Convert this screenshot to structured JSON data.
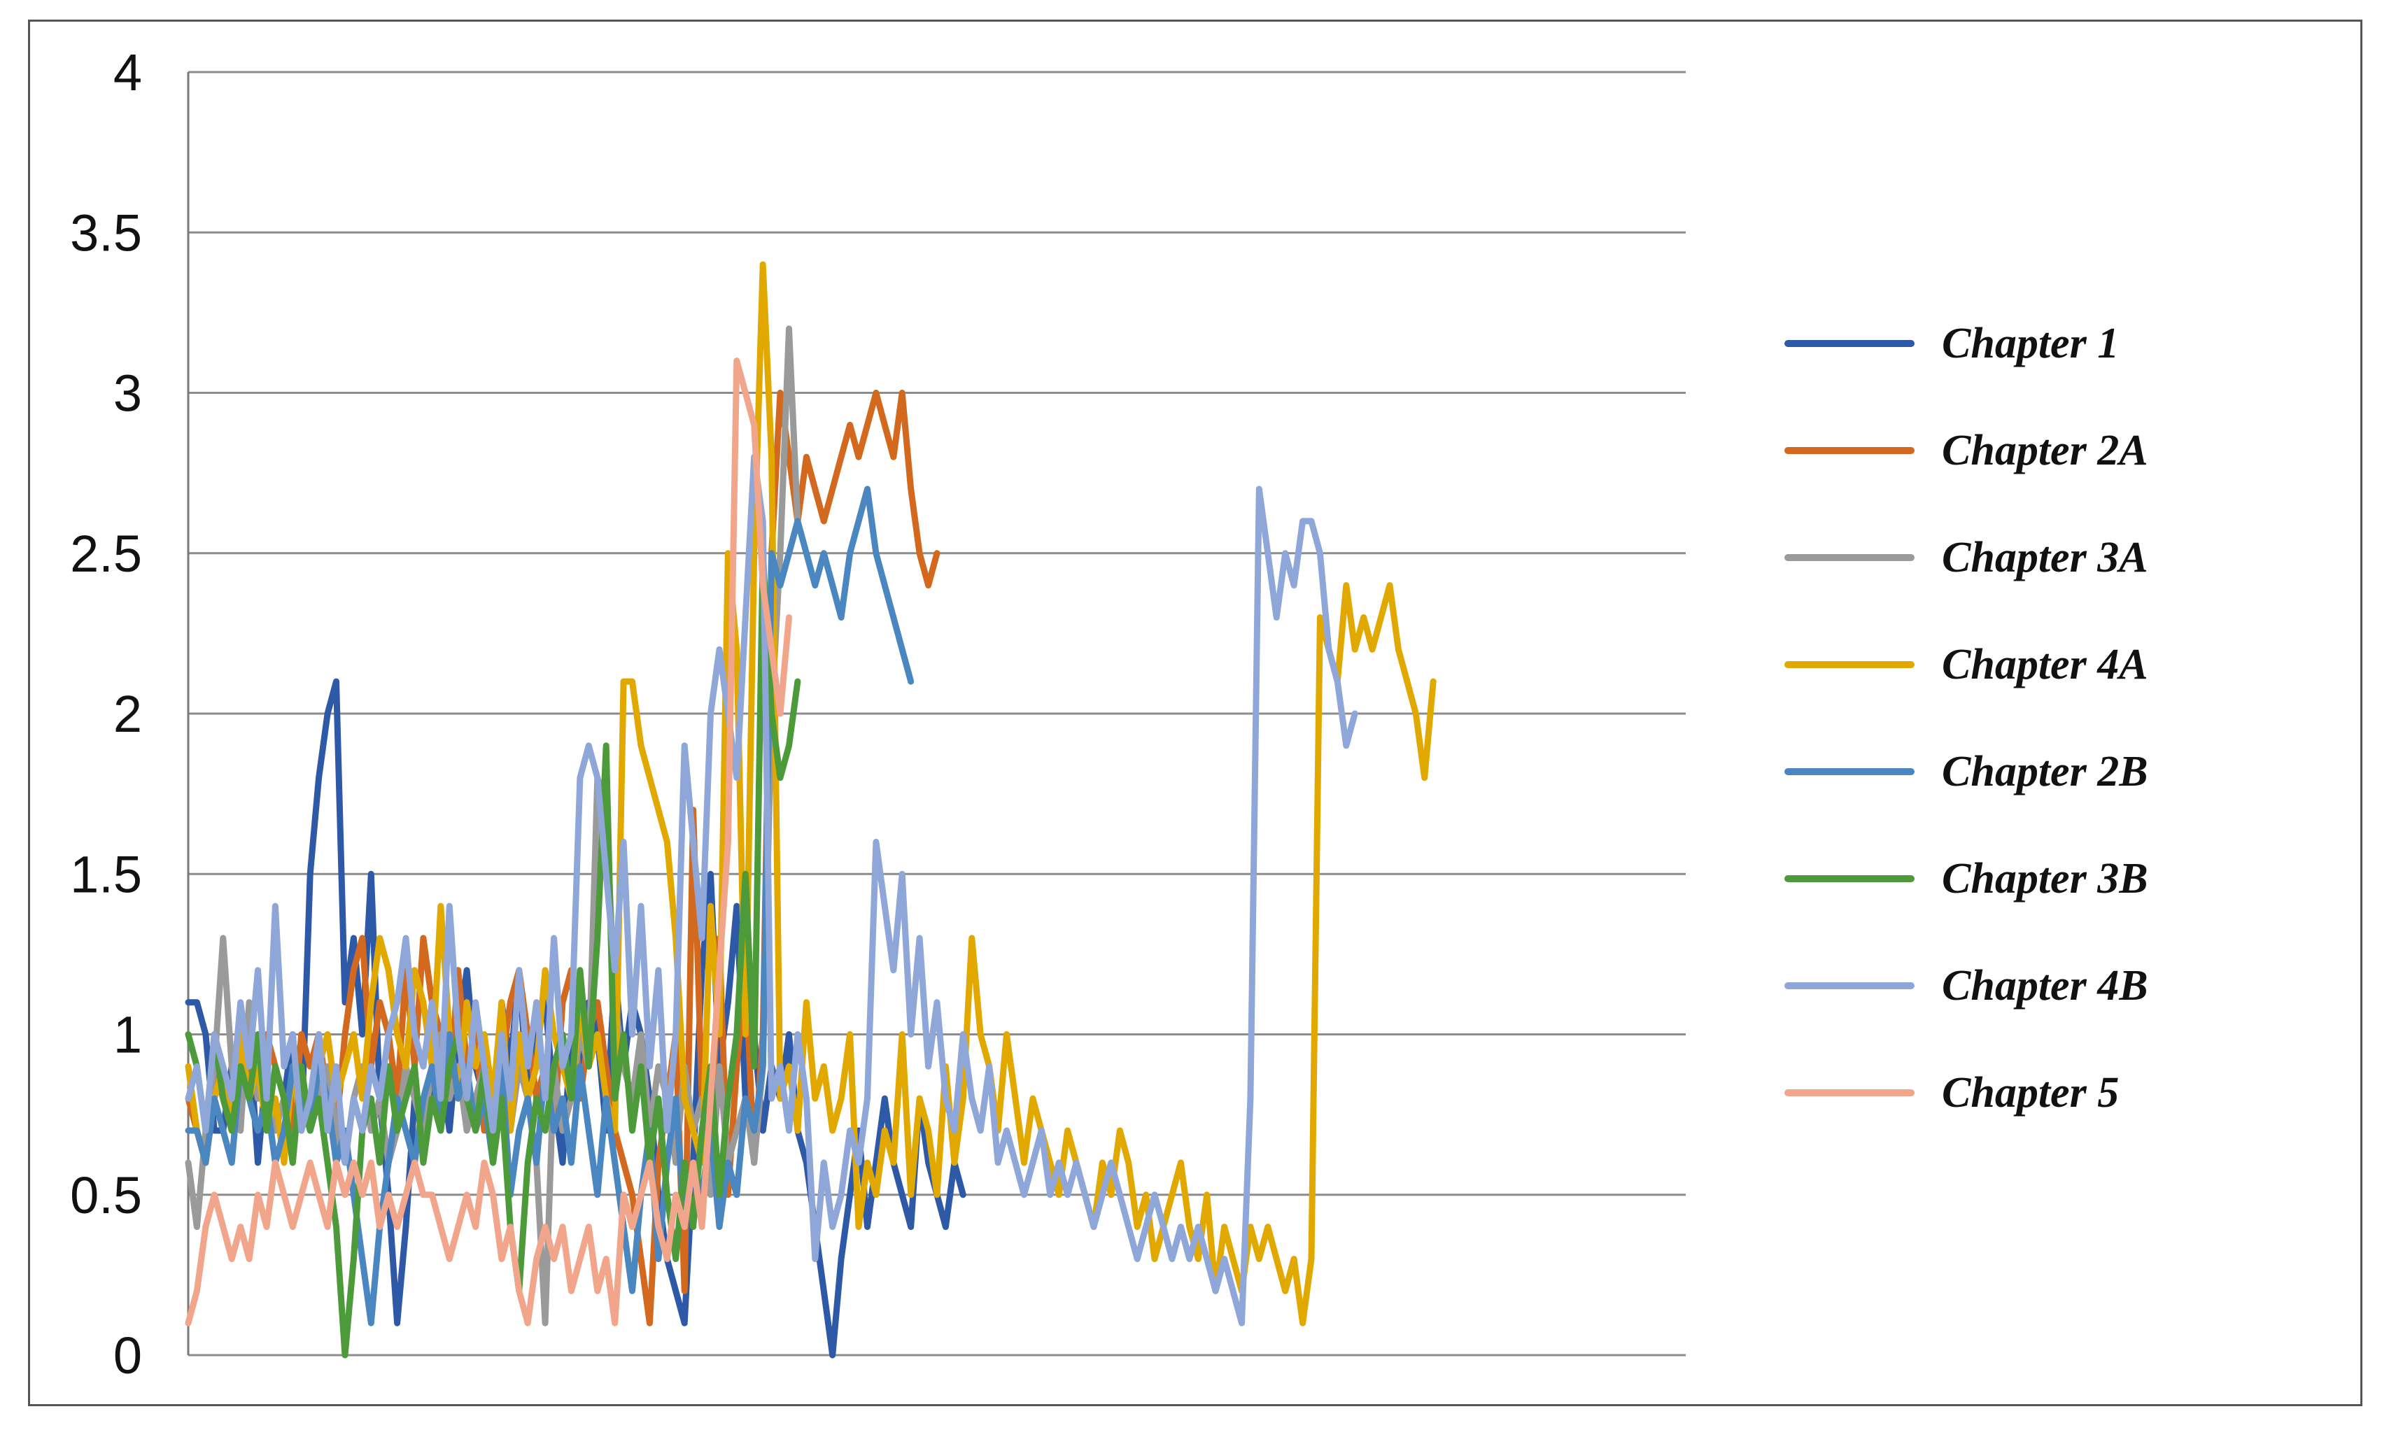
{
  "chart_data": {
    "type": "line",
    "title": "",
    "xlabel": "",
    "ylabel": "",
    "ylim": [
      0,
      4
    ],
    "yticks": [
      "0",
      "0.5",
      "1",
      "1.5",
      "2",
      "2.5",
      "3",
      "3.5",
      "4"
    ],
    "grid": true,
    "legend_position": "right",
    "series": [
      {
        "name": "Chapter 1",
        "color": "#2E59A7",
        "values": [
          1.1,
          1.1,
          1.0,
          0.7,
          0.7,
          0.9,
          0.8,
          1.0,
          0.6,
          0.9,
          0.7,
          0.8,
          1.0,
          0.7,
          1.5,
          1.8,
          2.0,
          2.1,
          1.1,
          1.3,
          1.0,
          1.5,
          0.8,
          0.5,
          0.1,
          0.4,
          0.8,
          0.7,
          0.8,
          0.9,
          0.7,
          1.0,
          1.2,
          0.9,
          0.8,
          0.7,
          1.1,
          0.9,
          1.2,
          0.8,
          1.0,
          1.1,
          0.8,
          0.6,
          1.0,
          0.9,
          1.1,
          1.0,
          0.7,
          1.2,
          0.9,
          1.1,
          1.0,
          0.8,
          0.5,
          0.3,
          0.2,
          0.1,
          0.6,
          1.2,
          1.5,
          0.9,
          1.1,
          1.4,
          0.8,
          1.0,
          0.7,
          0.9,
          0.8,
          1.0,
          0.7,
          0.6,
          0.4,
          0.2,
          0.0,
          0.3,
          0.5,
          0.7,
          0.4,
          0.6,
          0.8,
          0.6,
          0.5,
          0.4,
          0.8,
          0.6,
          0.5,
          0.4,
          0.6,
          0.5
        ]
      },
      {
        "name": "Chapter 2A",
        "color": "#D2691E",
        "values": [
          0.8,
          0.7,
          0.6,
          0.9,
          0.8,
          0.7,
          1.0,
          0.9,
          0.8,
          1.0,
          0.9,
          0.8,
          0.7,
          1.0,
          0.9,
          1.0,
          0.8,
          0.7,
          1.0,
          1.2,
          1.3,
          0.9,
          1.1,
          1.0,
          0.8,
          1.2,
          0.9,
          1.3,
          1.1,
          1.0,
          0.8,
          1.2,
          0.9,
          1.0,
          0.7,
          0.8,
          0.9,
          1.1,
          1.2,
          1.0,
          0.8,
          0.9,
          0.7,
          1.1,
          1.2,
          0.8,
          1.0,
          1.1,
          0.9,
          0.7,
          0.6,
          0.5,
          0.3,
          0.1,
          0.6,
          0.8,
          1.0,
          0.2,
          1.7,
          0.8,
          0.6,
          1.3,
          0.5,
          0.9,
          1.2,
          0.6,
          1.0,
          2.5,
          3.0,
          2.8,
          2.6,
          2.8,
          2.7,
          2.6,
          2.7,
          2.8,
          2.9,
          2.8,
          2.9,
          3.0,
          2.9,
          2.8,
          3.0,
          2.7,
          2.5,
          2.4,
          2.5
        ]
      },
      {
        "name": "Chapter 3A",
        "color": "#9A9A9A",
        "values": [
          0.6,
          0.4,
          0.7,
          0.9,
          1.3,
          0.9,
          0.7,
          1.1,
          0.8,
          0.9,
          0.7,
          0.8,
          0.6,
          0.9,
          0.7,
          0.8,
          0.9,
          0.7,
          0.6,
          0.8,
          0.9,
          0.7,
          0.8,
          0.6,
          0.7,
          0.9,
          0.8,
          0.7,
          0.9,
          1.0,
          0.8,
          0.9,
          0.7,
          0.8,
          0.9,
          0.6,
          0.8,
          0.7,
          0.9,
          0.8,
          0.6,
          0.1,
          0.9,
          0.7,
          0.8,
          1.0,
          0.9,
          1.8,
          1.7,
          1.1,
          0.9,
          0.8,
          1.0,
          0.7,
          0.9,
          0.8,
          0.6,
          0.9,
          0.7,
          0.8,
          0.5,
          0.9,
          0.6,
          0.7,
          0.8,
          0.6,
          0.9,
          2.0,
          2.5,
          3.2,
          2.6
        ]
      },
      {
        "name": "Chapter 4A",
        "color": "#E1A800",
        "values": [
          0.9,
          0.7,
          0.6,
          0.8,
          0.9,
          0.7,
          1.0,
          0.8,
          0.9,
          0.7,
          0.8,
          0.6,
          0.9,
          0.7,
          0.8,
          0.9,
          1.0,
          0.8,
          0.9,
          1.0,
          0.8,
          1.1,
          1.3,
          1.2,
          1.0,
          0.9,
          1.2,
          1.1,
          0.9,
          1.4,
          1.0,
          0.8,
          1.1,
          0.9,
          1.0,
          0.8,
          1.1,
          0.7,
          1.0,
          0.8,
          0.9,
          1.2,
          1.0,
          0.9,
          0.8,
          1.1,
          0.9,
          1.0,
          0.8,
          0.7,
          2.1,
          2.1,
          1.9,
          1.8,
          1.7,
          1.6,
          1.3,
          0.8,
          0.7,
          0.6,
          1.4,
          1.0,
          2.5,
          2.2,
          1.0,
          2.5,
          3.4,
          2.8,
          0.8,
          0.9,
          0.7,
          1.1,
          0.8,
          0.9,
          0.7,
          0.8,
          1.0,
          0.4,
          0.6,
          0.5,
          0.7,
          0.6,
          1.0,
          0.5,
          0.8,
          0.7,
          0.5,
          0.9,
          0.6,
          0.8,
          1.3,
          1.0,
          0.9,
          0.7,
          1.0,
          0.8,
          0.6,
          0.8,
          0.7,
          0.6,
          0.5,
          0.7,
          0.6,
          0.5,
          0.4,
          0.6,
          0.5,
          0.7,
          0.6,
          0.4,
          0.5,
          0.3,
          0.4,
          0.5,
          0.6,
          0.4,
          0.3,
          0.5,
          0.2,
          0.4,
          0.3,
          0.2,
          0.4,
          0.3,
          0.4,
          0.3,
          0.2,
          0.3,
          0.1,
          0.3,
          2.3,
          2.2,
          2.1,
          2.4,
          2.2,
          2.3,
          2.2,
          2.3,
          2.4,
          2.2,
          2.1,
          2.0,
          1.8,
          2.1
        ]
      },
      {
        "name": "Chapter 2B",
        "color": "#4A86C0",
        "values": [
          0.7,
          0.7,
          0.6,
          0.8,
          0.7,
          0.6,
          0.9,
          0.8,
          0.7,
          0.8,
          0.6,
          0.7,
          0.9,
          0.8,
          0.7,
          0.9,
          0.8,
          0.6,
          0.7,
          0.5,
          0.3,
          0.1,
          0.4,
          0.6,
          0.8,
          0.7,
          0.6,
          0.8,
          0.9,
          0.7,
          1.0,
          0.8,
          0.9,
          0.7,
          0.8,
          0.6,
          0.9,
          0.5,
          0.7,
          0.8,
          0.6,
          0.9,
          0.7,
          0.8,
          0.6,
          0.9,
          0.7,
          0.5,
          0.8,
          0.6,
          0.4,
          0.2,
          0.5,
          0.7,
          0.3,
          0.6,
          0.8,
          0.4,
          0.6,
          0.5,
          0.7,
          0.4,
          0.6,
          0.5,
          0.8,
          0.7,
          0.9,
          2.5,
          2.4,
          2.5,
          2.6,
          2.5,
          2.4,
          2.5,
          2.4,
          2.3,
          2.5,
          2.6,
          2.7,
          2.5,
          2.4,
          2.3,
          2.2,
          2.1
        ]
      },
      {
        "name": "Chapter 3B",
        "color": "#4C9A3A",
        "values": [
          1.0,
          0.9,
          0.7,
          1.0,
          0.8,
          0.7,
          0.9,
          0.8,
          1.0,
          0.7,
          0.9,
          0.8,
          0.6,
          0.9,
          0.7,
          0.8,
          0.6,
          0.4,
          0.0,
          0.3,
          0.7,
          0.8,
          0.6,
          0.9,
          0.7,
          0.8,
          0.9,
          0.6,
          0.8,
          0.7,
          0.9,
          1.0,
          0.8,
          0.7,
          0.9,
          0.6,
          0.8,
          0.4,
          0.2,
          0.6,
          0.8,
          0.7,
          0.9,
          1.0,
          0.8,
          1.2,
          0.9,
          1.3,
          1.9,
          0.8,
          1.0,
          0.7,
          0.9,
          0.6,
          0.8,
          0.5,
          0.3,
          0.6,
          0.4,
          0.7,
          0.9,
          0.5,
          0.8,
          1.0,
          1.5,
          0.9,
          2.5,
          2.0,
          1.8,
          1.9,
          2.1
        ]
      },
      {
        "name": "Chapter 4B",
        "color": "#8FA6D8",
        "values": [
          0.8,
          0.9,
          0.7,
          1.0,
          0.9,
          0.8,
          1.1,
          0.9,
          1.2,
          0.8,
          1.4,
          0.9,
          1.0,
          0.7,
          0.8,
          1.0,
          0.7,
          0.9,
          0.6,
          0.8,
          0.7,
          0.9,
          0.8,
          1.0,
          1.1,
          1.3,
          1.0,
          0.9,
          1.1,
          0.8,
          1.4,
          1.0,
          0.8,
          1.1,
          0.9,
          0.7,
          1.0,
          0.8,
          1.2,
          0.9,
          1.1,
          0.8,
          1.3,
          0.9,
          1.0,
          1.8,
          1.9,
          1.8,
          1.5,
          1.2,
          1.6,
          1.0,
          1.4,
          0.9,
          1.2,
          0.7,
          1.0,
          1.9,
          1.6,
          1.3,
          2.0,
          2.2,
          2.0,
          1.8,
          2.3,
          2.8,
          2.6,
          0.8,
          0.9,
          0.7,
          1.0,
          0.8,
          0.3,
          0.6,
          0.4,
          0.5,
          0.7,
          0.6,
          0.8,
          1.6,
          1.4,
          1.2,
          1.5,
          1.0,
          1.3,
          0.9,
          1.1,
          0.8,
          0.7,
          1.0,
          0.8,
          0.7,
          0.9,
          0.6,
          0.7,
          0.6,
          0.5,
          0.6,
          0.7,
          0.5,
          0.6,
          0.5,
          0.6,
          0.5,
          0.4,
          0.5,
          0.6,
          0.5,
          0.4,
          0.3,
          0.4,
          0.5,
          0.4,
          0.3,
          0.4,
          0.3,
          0.4,
          0.3,
          0.2,
          0.3,
          0.2,
          0.1,
          0.8,
          2.7,
          2.5,
          2.3,
          2.5,
          2.4,
          2.6,
          2.6,
          2.5,
          2.2,
          2.1,
          1.9,
          2.0
        ]
      },
      {
        "name": "Chapter 5",
        "color": "#F1A58A",
        "values": [
          0.1,
          0.2,
          0.4,
          0.5,
          0.4,
          0.3,
          0.4,
          0.3,
          0.5,
          0.4,
          0.6,
          0.5,
          0.4,
          0.5,
          0.6,
          0.5,
          0.4,
          0.6,
          0.5,
          0.6,
          0.5,
          0.6,
          0.4,
          0.5,
          0.4,
          0.5,
          0.6,
          0.5,
          0.5,
          0.4,
          0.3,
          0.4,
          0.5,
          0.4,
          0.6,
          0.5,
          0.3,
          0.4,
          0.2,
          0.1,
          0.3,
          0.4,
          0.3,
          0.4,
          0.2,
          0.3,
          0.4,
          0.2,
          0.3,
          0.1,
          0.5,
          0.4,
          0.5,
          0.6,
          0.4,
          0.3,
          0.5,
          0.4,
          0.6,
          0.4,
          0.8,
          1.2,
          1.6,
          3.1,
          3.0,
          2.9,
          2.4,
          2.2,
          2.0,
          2.3
        ]
      }
    ]
  }
}
